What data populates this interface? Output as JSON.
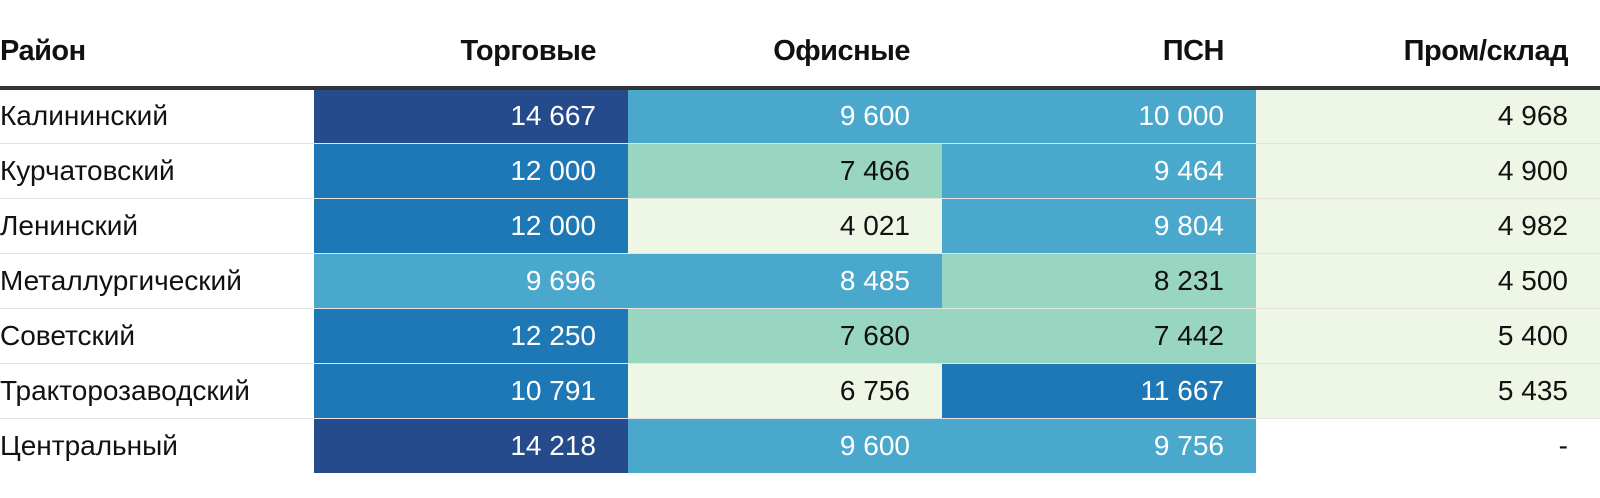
{
  "chart_data": {
    "type": "table",
    "columns": [
      "Район",
      "Торговые",
      "Офисные",
      "ПСН",
      "Пром/склад"
    ],
    "rows": [
      {
        "name": "Калининский",
        "values": [
          "14 667",
          "9 600",
          "10 000",
          "4 968"
        ],
        "raw": [
          14667,
          9600,
          10000,
          4968
        ]
      },
      {
        "name": "Курчатовский",
        "values": [
          "12 000",
          "7 466",
          "9 464",
          "4 900"
        ],
        "raw": [
          12000,
          7466,
          9464,
          4900
        ]
      },
      {
        "name": "Ленинский",
        "values": [
          "12 000",
          "4 021",
          "9 804",
          "4 982"
        ],
        "raw": [
          12000,
          4021,
          9804,
          4982
        ]
      },
      {
        "name": "Металлургический",
        "values": [
          "9 696",
          "8 485",
          "8 231",
          "4 500"
        ],
        "raw": [
          9696,
          8485,
          8231,
          4500
        ]
      },
      {
        "name": "Советский",
        "values": [
          "12 250",
          "7 680",
          "7 442",
          "5 400"
        ],
        "raw": [
          12250,
          7680,
          7442,
          5400
        ]
      },
      {
        "name": "Тракторозаводский",
        "values": [
          "10 791",
          "6 756",
          "11 667",
          "5 435"
        ],
        "raw": [
          10791,
          6756,
          11667,
          5435
        ]
      },
      {
        "name": "Центральный",
        "values": [
          "14 218",
          "9 600",
          "9 756",
          "-"
        ],
        "raw": [
          14218,
          9600,
          9756,
          null
        ]
      }
    ],
    "color_scale": {
      "bins": [
        {
          "min": 0,
          "max": 7000,
          "bg": "#eef7e6",
          "fg": "#111111"
        },
        {
          "min": 7000,
          "max": 8300,
          "bg": "#98d6c1",
          "fg": "#111111"
        },
        {
          "min": 8300,
          "max": 10500,
          "bg": "#4aa8cc",
          "fg": "#ffffff"
        },
        {
          "min": 10500,
          "max": 13000,
          "bg": "#1f78b6",
          "fg": "#ffffff"
        },
        {
          "min": 13000,
          "max": 99999,
          "bg": "#254b8c",
          "fg": "#ffffff"
        }
      ]
    }
  }
}
